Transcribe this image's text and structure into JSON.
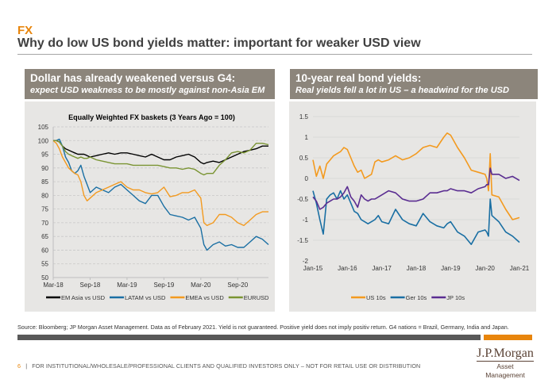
{
  "header": {
    "section": "FX",
    "title": "Why do low US bond yields matter: important for weaker USD view"
  },
  "left_panel": {
    "heading": "Dollar has already weakened versus G4:",
    "subheading": "expect USD weakness to be mostly against non-Asia EM"
  },
  "right_panel": {
    "heading": "10-year real bond yields:",
    "subheading": "Real yields fell a lot in US – a headwind for the USD"
  },
  "footer": {
    "source": "Source: Bloomberg; JP Morgan Asset Management. Data as of  February 2021. Yield is not guaranteed.  Positive yield does not imply positiv return. G4 nations = Brazil, Germany, India and Japan.",
    "page_number": "6",
    "separator": "|",
    "disclaimer": "FOR INSTITUTIONAL/WHOLESALE/PROFESSIONAL CLIENTS AND QUALIFIED INVESTORS ONLY – NOT FOR RETAIL USE OR DISTRIBUTION",
    "logo_line1": "J.P.Morgan",
    "logo_line2": "Asset Management"
  },
  "chart_data": [
    {
      "type": "line",
      "title": "Equally Weighted FX baskets (3 Years Ago = 100)",
      "xlabel": "",
      "ylabel": "",
      "ylim": [
        50,
        105
      ],
      "yticks": [
        50,
        55,
        60,
        65,
        70,
        75,
        80,
        85,
        90,
        95,
        100,
        105
      ],
      "x_range_months": [
        0,
        35
      ],
      "xtick_labels": [
        "Mar-18",
        "Sep-18",
        "Mar-19",
        "Sep-19",
        "Mar-20",
        "Sep-20"
      ],
      "xtick_months": [
        0,
        6,
        12,
        18,
        24,
        30
      ],
      "grid": "horizontal-dashed",
      "legend": "bottom",
      "x_months": [
        0,
        0.5,
        1,
        1.5,
        2,
        2.5,
        3,
        3.5,
        4,
        4.5,
        5,
        5.5,
        6,
        7,
        8,
        9,
        10,
        11,
        12,
        13,
        14,
        15,
        16,
        17,
        18,
        19,
        20,
        21,
        22,
        23,
        24,
        24.5,
        25,
        26,
        27,
        28,
        29,
        30,
        31,
        32,
        33,
        34,
        35
      ],
      "series": [
        {
          "name": "EM Asia vs USD",
          "color": "#000000",
          "values": [
            100,
            100,
            99.5,
            98,
            97,
            96.5,
            96,
            95.5,
            95,
            95,
            95,
            94.5,
            94,
            94.5,
            95,
            95.5,
            95,
            95.5,
            95.5,
            95,
            94.5,
            94,
            95,
            94,
            93,
            93,
            94,
            94.5,
            95,
            94,
            92,
            91.5,
            92,
            92.5,
            92,
            93,
            94,
            95,
            96,
            96.5,
            97,
            98,
            98
          ]
        },
        {
          "name": "LATAM vs USD",
          "color": "#1a6fa3",
          "values": [
            100,
            100,
            100.5,
            98,
            94,
            92,
            89,
            88,
            89,
            91,
            87,
            84,
            81,
            83,
            82,
            81,
            83,
            84,
            82,
            80,
            78,
            77,
            80,
            80,
            76,
            73,
            72.5,
            72,
            71,
            72,
            68,
            62,
            60,
            62,
            63,
            61.5,
            62,
            61,
            61,
            63,
            65,
            64,
            62
          ]
        },
        {
          "name": "EMEA vs USD",
          "color": "#f39a1f",
          "values": [
            100,
            99,
            97,
            94,
            92,
            90,
            89,
            88,
            87.5,
            85,
            80,
            78,
            79,
            81,
            82,
            83,
            84,
            85,
            83,
            82,
            82,
            81,
            80.5,
            81,
            83,
            79.5,
            80,
            81,
            81,
            82,
            79,
            70,
            69,
            70,
            73,
            73,
            72,
            70,
            69,
            71,
            73,
            74,
            74
          ]
        },
        {
          "name": "EURUSD",
          "color": "#7a9432",
          "values": [
            100,
            100,
            99.5,
            98,
            96,
            95,
            94.5,
            94,
            93.5,
            94,
            93.5,
            93.5,
            94,
            93,
            92.5,
            92,
            91.5,
            91.5,
            91.5,
            91,
            91,
            91,
            91,
            91,
            90.5,
            90,
            90,
            89.5,
            90,
            89.5,
            88,
            87.5,
            88,
            88,
            91,
            93,
            95.5,
            96,
            95.5,
            96.5,
            99,
            99,
            98.5
          ]
        }
      ]
    },
    {
      "type": "line",
      "title": "",
      "xlabel": "",
      "ylabel": "",
      "ylim": [
        -2,
        1.5
      ],
      "yticks": [
        -2,
        -1.5,
        -1,
        -0.5,
        0,
        0.5,
        1,
        1.5
      ],
      "x_range_years": [
        2015.0,
        2021.0
      ],
      "xtick_labels": [
        "Jan-15",
        "Jan-16",
        "Jan-17",
        "Jan-18",
        "Jan-19",
        "Jan-20",
        "Jan-21"
      ],
      "xtick_years": [
        2015,
        2016,
        2017,
        2018,
        2019,
        2020,
        2021
      ],
      "grid": "horizontal-solid",
      "legend": "bottom",
      "x_years": [
        2015.0,
        2015.1,
        2015.2,
        2015.3,
        2015.4,
        2015.5,
        2015.6,
        2015.7,
        2015.8,
        2015.9,
        2016.0,
        2016.1,
        2016.2,
        2016.3,
        2016.4,
        2016.5,
        2016.6,
        2016.7,
        2016.8,
        2016.9,
        2017.0,
        2017.2,
        2017.4,
        2017.6,
        2017.8,
        2018.0,
        2018.2,
        2018.4,
        2018.6,
        2018.8,
        2018.9,
        2019.0,
        2019.2,
        2019.4,
        2019.6,
        2019.8,
        2020.0,
        2020.05,
        2020.1,
        2020.15,
        2020.2,
        2020.4,
        2020.6,
        2020.8,
        2021.0
      ],
      "series": [
        {
          "name": "US 10s",
          "color": "#f39a1f",
          "values": [
            0.45,
            0.05,
            0.3,
            0.0,
            0.35,
            0.45,
            0.55,
            0.6,
            0.65,
            0.75,
            0.7,
            0.5,
            0.3,
            0.15,
            0.2,
            0.0,
            0.05,
            0.1,
            0.4,
            0.45,
            0.4,
            0.45,
            0.55,
            0.45,
            0.5,
            0.6,
            0.75,
            0.8,
            0.75,
            1.0,
            1.1,
            1.05,
            0.75,
            0.5,
            0.2,
            0.15,
            0.1,
            0.0,
            -0.3,
            0.6,
            -0.4,
            -0.45,
            -0.75,
            -1.0,
            -0.95
          ]
        },
        {
          "name": "Ger 10s",
          "color": "#1a6fa3",
          "values": [
            -0.3,
            -0.6,
            -1.0,
            -1.35,
            -0.5,
            -0.4,
            -0.35,
            -0.5,
            -0.3,
            -0.5,
            -0.4,
            -0.6,
            -0.8,
            -0.85,
            -1.0,
            -1.05,
            -1.1,
            -1.05,
            -1.0,
            -0.9,
            -1.05,
            -1.1,
            -0.75,
            -1.0,
            -1.1,
            -1.15,
            -0.85,
            -1.05,
            -1.15,
            -1.2,
            -1.1,
            -1.05,
            -1.3,
            -1.4,
            -1.6,
            -1.3,
            -1.25,
            -1.3,
            -1.4,
            -0.5,
            -0.9,
            -1.05,
            -1.3,
            -1.4,
            -1.55
          ]
        },
        {
          "name": "JP 10s",
          "color": "#5a2d91",
          "values": [
            -0.45,
            -0.55,
            -0.75,
            -0.7,
            -0.6,
            -0.55,
            -0.5,
            -0.5,
            -0.45,
            -0.35,
            -0.2,
            -0.45,
            -0.55,
            -0.7,
            -0.4,
            -0.5,
            -0.55,
            -0.5,
            -0.5,
            -0.45,
            -0.4,
            -0.3,
            -0.35,
            -0.5,
            -0.55,
            -0.55,
            -0.5,
            -0.35,
            -0.35,
            -0.3,
            -0.3,
            -0.25,
            -0.3,
            -0.3,
            -0.35,
            -0.25,
            -0.2,
            -0.15,
            -0.15,
            0.25,
            0.1,
            0.1,
            0.0,
            0.05,
            -0.05
          ]
        }
      ]
    }
  ]
}
